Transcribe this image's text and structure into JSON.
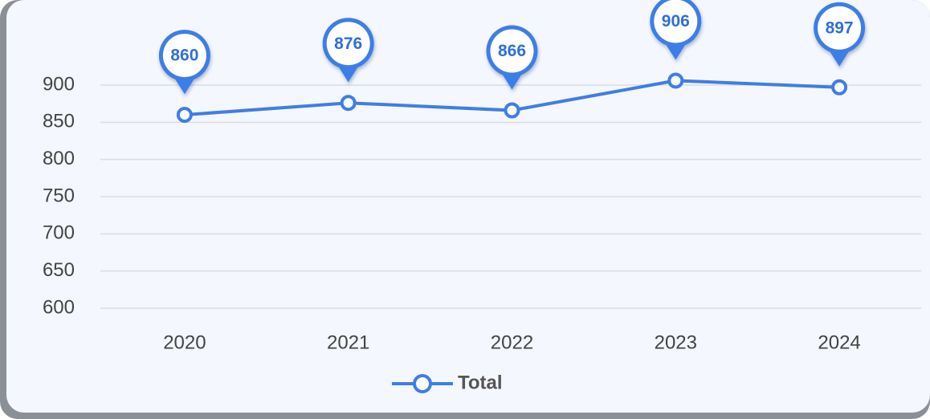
{
  "chart_data": {
    "type": "line",
    "categories": [
      "2020",
      "2021",
      "2022",
      "2023",
      "2024"
    ],
    "series": [
      {
        "name": "Total",
        "color": "#3e7ee6",
        "values": [
          860,
          876,
          866,
          906,
          897
        ]
      }
    ],
    "ylim": [
      600,
      900
    ],
    "yticks": [
      600,
      650,
      700,
      750,
      800,
      850,
      900
    ],
    "grid": true,
    "legend": "bottom"
  }
}
